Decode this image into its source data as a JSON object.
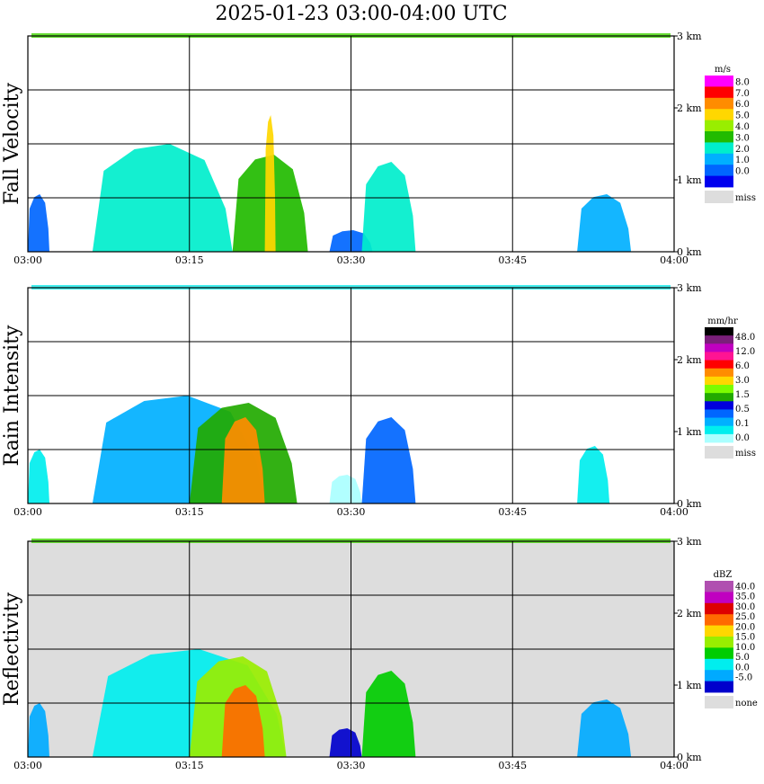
{
  "title": "2025-01-23   03:00-04:00 UTC",
  "time_ticks": [
    "03:00",
    "03:15",
    "03:30",
    "03:45",
    "04:00"
  ],
  "height_ticks": [
    "0 km",
    "1 km",
    "2 km",
    "3 km"
  ],
  "chart_data": [
    {
      "type": "heatmap",
      "title": "Fall Velocity",
      "ylabel": "Fall Velocity",
      "x_range": [
        "03:00",
        "04:00"
      ],
      "y_range_km": [
        0,
        3
      ],
      "background": "white",
      "colorbar": {
        "unit": "m/s",
        "labels": [
          "8.0",
          "7.0",
          "6.0",
          "5.0",
          "4.0",
          "3.0",
          "2.0",
          "1.0",
          "0.0"
        ],
        "colors": [
          "#ff00ff",
          "#ff0000",
          "#ff8c00",
          "#ffd700",
          "#99ee00",
          "#22bb00",
          "#00eecc",
          "#00b0ff",
          "#0066ff",
          "#0000ee"
        ],
        "miss_label": "miss",
        "miss_color": "#dddddd"
      },
      "echo_regions": [
        {
          "start": "03:00",
          "end": "03:02",
          "top_km": 0.8,
          "level": 8
        },
        {
          "start": "03:06",
          "end": "03:19",
          "top_km": 1.5,
          "level": 6
        },
        {
          "start": "03:19",
          "end": "03:26",
          "top_km": 1.35,
          "level": 5
        },
        {
          "start": "03:22",
          "end": "03:23",
          "top_km": 1.9,
          "level": 3
        },
        {
          "start": "03:28",
          "end": "03:32",
          "top_km": 0.3,
          "level": 8
        },
        {
          "start": "03:31",
          "end": "03:36",
          "top_km": 1.25,
          "level": 6
        },
        {
          "start": "03:51",
          "end": "03:56",
          "top_km": 0.8,
          "level": 7
        }
      ]
    },
    {
      "type": "heatmap",
      "title": "Rain Intensity",
      "ylabel": "Rain Intensity",
      "x_range": [
        "03:00",
        "04:00"
      ],
      "y_range_km": [
        0,
        3
      ],
      "background": "white",
      "colorbar": {
        "unit": "mm/hr",
        "labels": [
          "48.0",
          "12.0",
          "6.0",
          "3.0",
          "1.5",
          "0.5",
          "0.1",
          "0.0"
        ],
        "colors": [
          "#000000",
          "#7a1f7a",
          "#c000c0",
          "#ff1493",
          "#ff0000",
          "#ff8c00",
          "#ffd700",
          "#7cfc00",
          "#22aa00",
          "#0000dd",
          "#0066ff",
          "#00b0ff",
          "#00eeee",
          "#aaffff"
        ],
        "miss_label": "miss",
        "miss_color": "#dddddd"
      },
      "echo_regions": [
        {
          "start": "03:00",
          "end": "03:02",
          "top_km": 0.75,
          "level": 12
        },
        {
          "start": "03:06",
          "end": "03:22",
          "top_km": 1.5,
          "level": 11
        },
        {
          "start": "03:15",
          "end": "03:25",
          "top_km": 1.4,
          "level": 8
        },
        {
          "start": "03:18",
          "end": "03:22",
          "top_km": 1.2,
          "level": 5
        },
        {
          "start": "03:28",
          "end": "03:31",
          "top_km": 0.4,
          "level": 13
        },
        {
          "start": "03:31",
          "end": "03:36",
          "top_km": 1.2,
          "level": 10
        },
        {
          "start": "03:51",
          "end": "03:54",
          "top_km": 0.8,
          "level": 12
        }
      ]
    },
    {
      "type": "heatmap",
      "title": "Reflectivity",
      "ylabel": "Reflectivity",
      "x_range": [
        "03:00",
        "04:00"
      ],
      "y_range_km": [
        0,
        3
      ],
      "background": "#dddddd",
      "colorbar": {
        "unit": "dBZ",
        "labels": [
          "40.0",
          "35.0",
          "30.0",
          "25.0",
          "20.0",
          "15.0",
          "10.0",
          "5.0",
          "0.0",
          "-5.0"
        ],
        "colors": [
          "#b04fb0",
          "#c000c0",
          "#dd0000",
          "#ff6a00",
          "#ffd700",
          "#99ee00",
          "#00cc00",
          "#00eeee",
          "#00aaff",
          "#0000cc"
        ],
        "miss_label": "none",
        "miss_color": "#dddddd"
      },
      "echo_regions": [
        {
          "start": "03:00",
          "end": "03:02",
          "top_km": 0.75,
          "level": 8
        },
        {
          "start": "03:06",
          "end": "03:24",
          "top_km": 1.5,
          "level": 7
        },
        {
          "start": "03:15",
          "end": "03:24",
          "top_km": 1.4,
          "level": 5
        },
        {
          "start": "03:18",
          "end": "03:22",
          "top_km": 1.0,
          "level": 3
        },
        {
          "start": "03:28",
          "end": "03:31",
          "top_km": 0.4,
          "level": 9
        },
        {
          "start": "03:31",
          "end": "03:36",
          "top_km": 1.2,
          "level": 6
        },
        {
          "start": "03:51",
          "end": "03:56",
          "top_km": 0.8,
          "level": 8
        }
      ]
    }
  ]
}
